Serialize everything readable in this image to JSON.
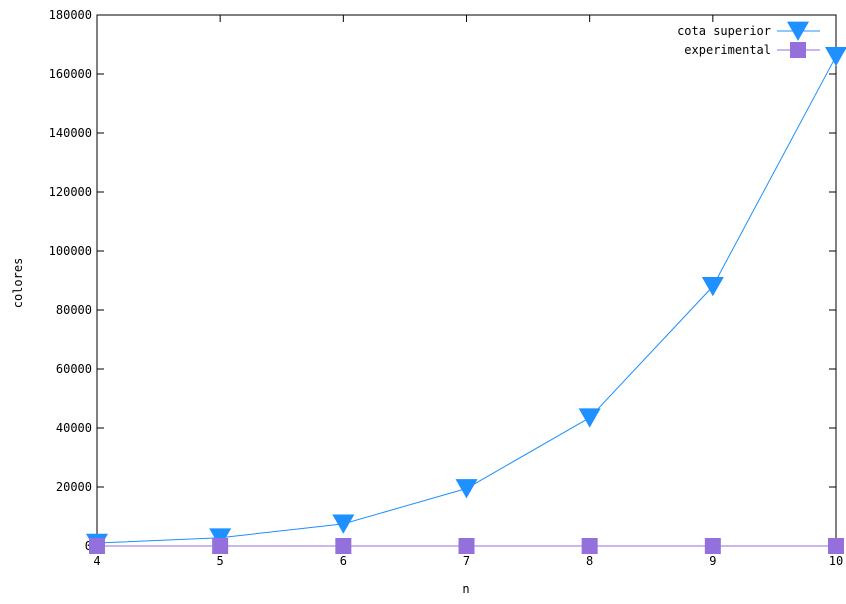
{
  "chart_data": {
    "type": "line",
    "title": "",
    "xlabel": "n",
    "ylabel": "colores",
    "x": [
      4,
      5,
      6,
      7,
      8,
      9,
      10
    ],
    "xlim": [
      4,
      10
    ],
    "ylim": [
      0,
      180000
    ],
    "xticks": [
      "4",
      "5",
      "6",
      "7",
      "8",
      "9",
      "10"
    ],
    "yticks": [
      "0",
      "20000",
      "40000",
      "60000",
      "80000",
      "100000",
      "120000",
      "140000",
      "160000",
      "180000"
    ],
    "grid": false,
    "legend_position": "top-right",
    "series": [
      {
        "name": "cota superior",
        "marker": "triangle-down",
        "color": "#1e90ff",
        "values": [
          1000,
          2800,
          7500,
          19500,
          43500,
          88000,
          166000
        ]
      },
      {
        "name": "experimental",
        "marker": "square",
        "color": "#9370db",
        "values": [
          0,
          0,
          0,
          0,
          0,
          0,
          0
        ]
      }
    ]
  }
}
